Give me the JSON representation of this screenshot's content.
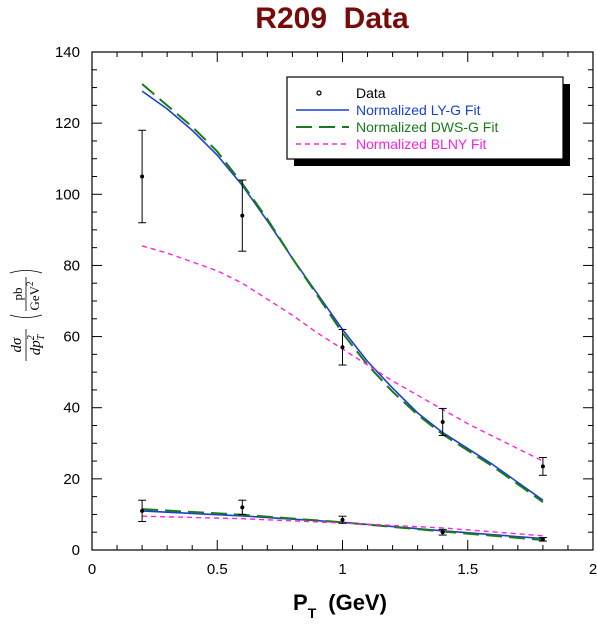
{
  "chart_data": {
    "type": "scatter",
    "title": "R209  Data",
    "xlabel": {
      "main": "P",
      "sub": "T",
      "unit": "(GeV)"
    },
    "ylabel": {
      "d1": "d",
      "sigma": "σ",
      "dp": "dp",
      "exp": "2",
      "sub": "T",
      "num": "pb",
      "den": "GeV",
      "den_exp": "2"
    },
    "xlim": [
      0,
      2
    ],
    "ylim": [
      0,
      140
    ],
    "xticks": [
      0,
      0.5,
      1,
      1.5,
      2
    ],
    "xtick_labels": [
      "0",
      "0.5",
      "1",
      "1.5",
      "2"
    ],
    "yticks": [
      0,
      20,
      40,
      60,
      80,
      100,
      120,
      140
    ],
    "ytick_labels": [
      "0",
      "20",
      "40",
      "60",
      "80",
      "100",
      "120",
      "140"
    ],
    "legend_position": "top-right",
    "legend": [
      {
        "label": "Data",
        "color": "#000000",
        "style": "point"
      },
      {
        "label": "Normalized LY-G Fit",
        "color": "#1a3fd6",
        "style": "solid"
      },
      {
        "label": "Normalized DWS-G Fit",
        "color": "#1a7a1a",
        "style": "longdash"
      },
      {
        "label": "Normalized BLNY Fit",
        "color": "#ff22dd",
        "style": "shortdash"
      }
    ],
    "data_sets": [
      {
        "name": "upper",
        "points": [
          {
            "x": 0.2,
            "y": 105,
            "err": 13
          },
          {
            "x": 0.6,
            "y": 94,
            "err": 10
          },
          {
            "x": 1.0,
            "y": 57,
            "err": 5
          },
          {
            "x": 1.4,
            "y": 36,
            "err": 3.8
          },
          {
            "x": 1.8,
            "y": 23.5,
            "err": 2.5
          }
        ]
      },
      {
        "name": "lower",
        "points": [
          {
            "x": 0.2,
            "y": 11,
            "err": 3
          },
          {
            "x": 0.6,
            "y": 12,
            "err": 2
          },
          {
            "x": 1.0,
            "y": 8.5,
            "err": 1
          },
          {
            "x": 1.4,
            "y": 5,
            "err": 0.8
          },
          {
            "x": 1.8,
            "y": 3,
            "err": 0.5
          }
        ]
      }
    ],
    "series": [
      {
        "name": "Normalized LY-G Fit",
        "set": "upper",
        "x": [
          0.2,
          0.3,
          0.4,
          0.5,
          0.6,
          0.7,
          0.8,
          0.9,
          1.0,
          1.1,
          1.2,
          1.3,
          1.4,
          1.5,
          1.6,
          1.7,
          1.8
        ],
        "y": [
          129,
          124,
          118,
          111,
          102.5,
          92.5,
          82,
          72,
          62,
          53,
          45.5,
          38.5,
          33,
          28.5,
          24,
          19,
          14
        ]
      },
      {
        "name": "Normalized DWS-G Fit",
        "set": "upper",
        "x": [
          0.2,
          0.3,
          0.4,
          0.5,
          0.6,
          0.7,
          0.8,
          0.9,
          1.0,
          1.1,
          1.2,
          1.3,
          1.4,
          1.5,
          1.6,
          1.7,
          1.8
        ],
        "y": [
          131,
          125,
          119,
          112,
          103,
          93,
          82,
          71.5,
          61,
          52,
          44.5,
          38,
          32.5,
          28,
          23.5,
          18.5,
          13.5
        ]
      },
      {
        "name": "Normalized BLNY Fit",
        "set": "upper",
        "x": [
          0.2,
          0.3,
          0.4,
          0.5,
          0.6,
          0.7,
          0.8,
          0.9,
          1.0,
          1.1,
          1.2,
          1.3,
          1.4,
          1.5,
          1.6,
          1.7,
          1.8
        ],
        "y": [
          85.5,
          83.5,
          81,
          78.5,
          75,
          70.5,
          66,
          61,
          56.5,
          52,
          47.5,
          43.5,
          39.5,
          35.5,
          32,
          28.5,
          25
        ]
      },
      {
        "name": "Normalized LY-G Fit",
        "set": "lower",
        "x": [
          0.2,
          0.6,
          1.0,
          1.4,
          1.8
        ],
        "y": [
          11,
          9.6,
          7.8,
          5.4,
          3.2
        ]
      },
      {
        "name": "Normalized DWS-G Fit",
        "set": "lower",
        "x": [
          0.2,
          0.6,
          1.0,
          1.4,
          1.8
        ],
        "y": [
          11.5,
          9.9,
          7.8,
          5.2,
          2.8
        ]
      },
      {
        "name": "Normalized BLNY Fit",
        "set": "lower",
        "x": [
          0.2,
          0.6,
          1.0,
          1.4,
          1.8
        ],
        "y": [
          9.5,
          8.8,
          7.6,
          6.2,
          4
        ]
      }
    ]
  }
}
